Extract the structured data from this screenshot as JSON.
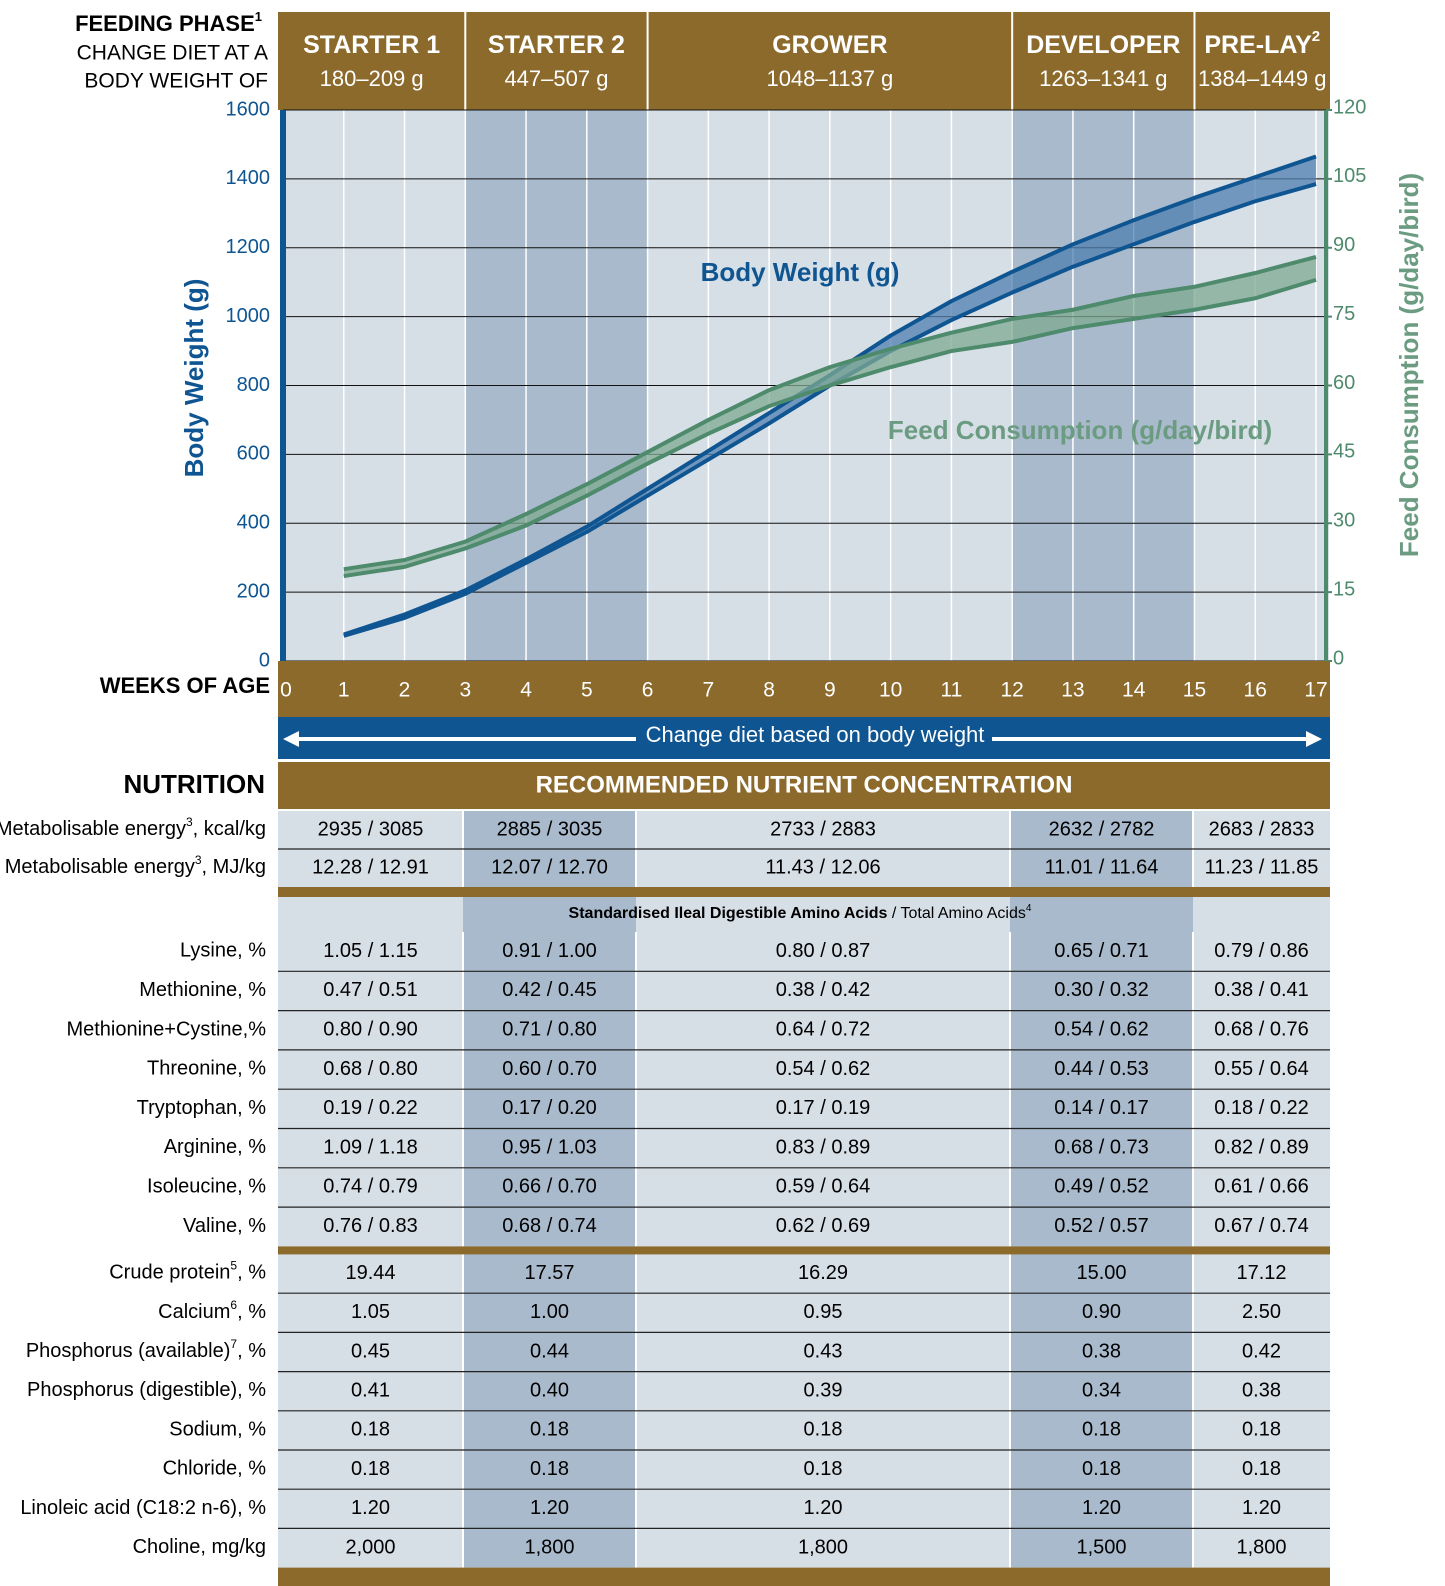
{
  "chart_data": {
    "type": "band",
    "header": {
      "title": "FEEDING PHASE",
      "title_sup": "1",
      "line2": "CHANGE DIET AT A",
      "line3": "BODY WEIGHT OF"
    },
    "phases": [
      {
        "name": "STARTER 1",
        "range": "180–209 g",
        "start": 0,
        "end": 3
      },
      {
        "name": "STARTER 2",
        "range": "447–507 g",
        "start": 3,
        "end": 6
      },
      {
        "name": "GROWER",
        "range": "1048–1137 g",
        "start": 6,
        "end": 12
      },
      {
        "name": "DEVELOPER",
        "range": "1263–1341 g",
        "start": 12,
        "end": 15
      },
      {
        "name": "PRE-LAY",
        "sup": "2",
        "range": "1384–1449 g",
        "start": 15,
        "end": 17
      }
    ],
    "xlabel": "WEEKS OF AGE",
    "ylabel": "Body Weight (g)",
    "y2label": "Feed Consumption (g/day/bird)",
    "xlim": [
      0,
      17
    ],
    "xticks": [
      0,
      1,
      2,
      3,
      4,
      5,
      6,
      7,
      8,
      9,
      10,
      11,
      12,
      13,
      14,
      15,
      16,
      17
    ],
    "ylim": [
      0,
      1600
    ],
    "yticks": [
      0,
      200,
      400,
      600,
      800,
      1000,
      1200,
      1400,
      1600
    ],
    "y2lim": [
      0,
      120
    ],
    "y2ticks": [
      0,
      15,
      30,
      45,
      60,
      75,
      90,
      105,
      120
    ],
    "grid": true,
    "x": [
      1,
      2,
      3,
      4,
      5,
      6,
      7,
      8,
      9,
      10,
      11,
      12,
      13,
      14,
      15,
      16,
      17
    ],
    "series": [
      {
        "name": "Body Weight (g)",
        "color": "#0e5592",
        "fill": "#4f7fb0",
        "upper": [
          77,
          135,
          205,
          295,
          390,
          500,
          610,
          720,
          830,
          945,
          1045,
          1130,
          1210,
          1280,
          1345,
          1405,
          1465
        ],
        "lower": [
          73,
          125,
          195,
          285,
          375,
          480,
          585,
          690,
          800,
          900,
          990,
          1070,
          1145,
          1210,
          1275,
          1335,
          1385
        ]
      },
      {
        "name": "Feed Consumption (g/day/bird)",
        "axis": "y2",
        "color": "#4e8a6c",
        "fill": "#7faa92",
        "upper": [
          20,
          22,
          26,
          32,
          38.5,
          45.5,
          52.5,
          59,
          64,
          68,
          71.5,
          74.5,
          76.5,
          79.5,
          81.5,
          84.5,
          88
        ],
        "lower": [
          18.5,
          20.5,
          24.5,
          29.5,
          36,
          43,
          49.5,
          55.5,
          60,
          64,
          67.5,
          69.5,
          72.5,
          74.5,
          76.5,
          79,
          83
        ]
      }
    ],
    "diet_note": "Change diet based on body weight"
  },
  "nutrition": {
    "title": "NUTRITION",
    "heading": "RECOMMENDED NUTRIENT CONCENTRATION",
    "groups": [
      {
        "rows": [
          {
            "label": "Metabolisable energy",
            "sup": "3",
            "unit": ", kcal/kg",
            "values": [
              "2935 / 3085",
              "2885 / 3035",
              "2733 / 2883",
              "2632 / 2782",
              "2683 / 2833"
            ]
          },
          {
            "label": "Metabolisable energy",
            "sup": "3",
            "unit": ", MJ/kg",
            "values": [
              "12.28 / 12.91",
              "12.07 / 12.70",
              "11.43 / 12.06",
              "11.01 / 11.64",
              "11.23 / 11.85"
            ]
          }
        ]
      },
      {
        "subheader": {
          "bold": "Standardised Ileal Digestible Amino Acids",
          "rest": " / Total Amino Acids",
          "sup": "4"
        },
        "rows": [
          {
            "label": "Lysine, %",
            "values": [
              "1.05 / 1.15",
              "0.91 / 1.00",
              "0.80 / 0.87",
              "0.65 / 0.71",
              "0.79 / 0.86"
            ]
          },
          {
            "label": "Methionine, %",
            "values": [
              "0.47 / 0.51",
              "0.42 / 0.45",
              "0.38 / 0.42",
              "0.30 / 0.32",
              "0.38 / 0.41"
            ]
          },
          {
            "label": "Methionine+Cystine,%",
            "values": [
              "0.80 / 0.90",
              "0.71 / 0.80",
              "0.64 / 0.72",
              "0.54 / 0.62",
              "0.68 / 0.76"
            ]
          },
          {
            "label": "Threonine, %",
            "values": [
              "0.68 / 0.80",
              "0.60 / 0.70",
              "0.54 / 0.62",
              "0.44 / 0.53",
              "0.55 / 0.64"
            ]
          },
          {
            "label": "Tryptophan, %",
            "values": [
              "0.19 / 0.22",
              "0.17 / 0.20",
              "0.17 / 0.19",
              "0.14 / 0.17",
              "0.18 / 0.22"
            ]
          },
          {
            "label": "Arginine, %",
            "values": [
              "1.09 / 1.18",
              "0.95 / 1.03",
              "0.83 / 0.89",
              "0.68 / 0.73",
              "0.82 / 0.89"
            ]
          },
          {
            "label": "Isoleucine, %",
            "values": [
              "0.74 / 0.79",
              "0.66 / 0.70",
              "0.59 / 0.64",
              "0.49 / 0.52",
              "0.61 / 0.66"
            ]
          },
          {
            "label": "Valine, %",
            "values": [
              "0.76 / 0.83",
              "0.68 / 0.74",
              "0.62 / 0.69",
              "0.52 / 0.57",
              "0.67 / 0.74"
            ]
          }
        ]
      },
      {
        "rows": [
          {
            "label": "Crude protein",
            "sup": "5",
            "unit": ", %",
            "values": [
              "19.44",
              "17.57",
              "16.29",
              "15.00",
              "17.12"
            ]
          },
          {
            "label": "Calcium",
            "sup": "6",
            "unit": ", %",
            "values": [
              "1.05",
              "1.00",
              "0.95",
              "0.90",
              "2.50"
            ]
          },
          {
            "label": "Phosphorus (available)",
            "sup": "7",
            "unit": ", %",
            "values": [
              "0.45",
              "0.44",
              "0.43",
              "0.38",
              "0.42"
            ]
          },
          {
            "label": "Phosphorus (digestible), %",
            "values": [
              "0.41",
              "0.40",
              "0.39",
              "0.34",
              "0.38"
            ]
          },
          {
            "label": "Sodium, %",
            "values": [
              "0.18",
              "0.18",
              "0.18",
              "0.18",
              "0.18"
            ]
          },
          {
            "label": "Chloride, %",
            "values": [
              "0.18",
              "0.18",
              "0.18",
              "0.18",
              "0.18"
            ]
          },
          {
            "label": "Linoleic acid (C18:2 n-6), %",
            "values": [
              "1.20",
              "1.20",
              "1.20",
              "1.20",
              "1.20"
            ]
          },
          {
            "label": "Choline, mg/kg",
            "values": [
              "2,000",
              "1,800",
              "1,800",
              "1,500",
              "1,800"
            ]
          }
        ]
      }
    ]
  }
}
